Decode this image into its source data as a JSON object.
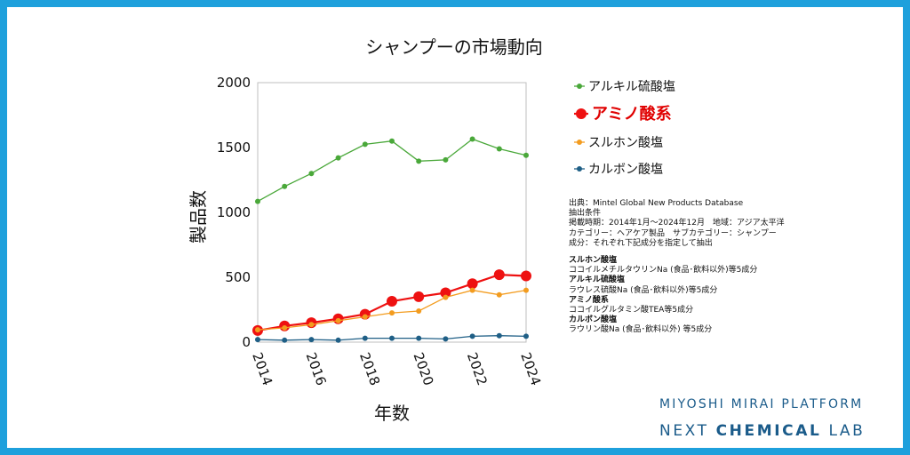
{
  "chart_data": {
    "type": "line",
    "title": "シャンプーの市場動向",
    "xlabel": "年数",
    "ylabel": "製品数",
    "x": [
      2014,
      2015,
      2016,
      2017,
      2018,
      2019,
      2020,
      2021,
      2022,
      2023,
      2024
    ],
    "xticks": [
      "2014",
      "2016",
      "2018",
      "2020",
      "2022",
      "2024"
    ],
    "ylim": [
      0,
      2000
    ],
    "yticks": [
      "0",
      "500",
      "1000",
      "1500",
      "2000"
    ],
    "legend_position": "right",
    "series": [
      {
        "name": "アルキル硫酸塩",
        "color": "#4aa83a",
        "emphasis": false,
        "values": [
          1085,
          1200,
          1300,
          1420,
          1525,
          1550,
          1395,
          1405,
          1565,
          1490,
          1440
        ]
      },
      {
        "name": "アミノ酸系",
        "color": "#ee1111",
        "emphasis": true,
        "values": [
          90,
          125,
          150,
          180,
          215,
          315,
          350,
          380,
          450,
          520,
          510
        ]
      },
      {
        "name": "スルホン酸塩",
        "color": "#f39c1f",
        "emphasis": false,
        "values": [
          95,
          110,
          135,
          165,
          195,
          225,
          240,
          345,
          400,
          365,
          400
        ]
      },
      {
        "name": "カルボン酸塩",
        "color": "#1f5f86",
        "emphasis": false,
        "values": [
          20,
          15,
          20,
          15,
          30,
          30,
          30,
          25,
          45,
          50,
          45
        ]
      }
    ]
  },
  "notes": {
    "source": "出典：Mintel Global New Products Database",
    "conditions_title": "抽出条件",
    "period": "掲載時期：2014年1月～2024年12月　地域：アジア太平洋",
    "category": "カテゴリー：ヘアケア製品　サブカテゴリー：シャンプー",
    "ingredients": "成分：それぞれ下記成分を指定して抽出",
    "groups": [
      {
        "name": "スルホン酸塩",
        "desc": "ココイルメチルタウリンNa (食品･飲料以外)等5成分"
      },
      {
        "name": "アルキル硫酸塩",
        "desc": "ラウレス硫酸Na (食品･飲料以外)等5成分"
      },
      {
        "name": "アミノ酸系",
        "desc": "ココイルグルタミン酸TEA等5成分"
      },
      {
        "name": "カルボン酸塩",
        "desc": "ラウリン酸Na (食品･飲料以外) 等5成分"
      }
    ]
  },
  "branding": {
    "line1": "MIYOSHI MIRAI PLATFORM",
    "line2_prefix": "NEXT",
    "line2_bold": "CHEMICAL",
    "line2_suffix": "LAB"
  }
}
